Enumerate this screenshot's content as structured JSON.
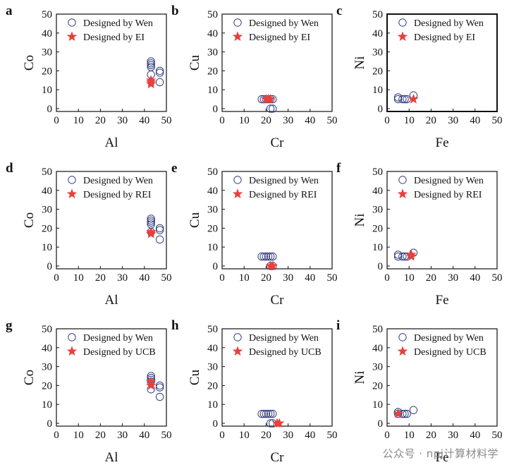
{
  "chart_data": [
    {
      "type": "scatter",
      "panel": "a",
      "xlabel": "Al",
      "ylabel": "Co",
      "xlim": [
        0,
        50
      ],
      "ylim": [
        0,
        50
      ],
      "ticks": [
        0,
        10,
        20,
        30,
        40,
        50
      ],
      "legend": "top-right",
      "series": [
        {
          "name": "Designed by Wen",
          "marker": "circle",
          "color": "#34407e",
          "points": [
            [
              43,
              25
            ],
            [
              43,
              24
            ],
            [
              43,
              23
            ],
            [
              43,
              22
            ],
            [
              43,
              18
            ],
            [
              47,
              20
            ],
            [
              47,
              19
            ],
            [
              47,
              14
            ]
          ]
        },
        {
          "name": "Designed by EI",
          "marker": "star",
          "color": "#e8403a",
          "points": [
            [
              43,
              15
            ],
            [
              43,
              14
            ],
            [
              43,
              13
            ]
          ]
        }
      ]
    },
    {
      "type": "scatter",
      "panel": "b",
      "xlabel": "Cr",
      "ylabel": "Cu",
      "xlim": [
        0,
        50
      ],
      "ylim": [
        0,
        50
      ],
      "ticks": [
        0,
        10,
        20,
        30,
        40,
        50
      ],
      "legend": "top-right",
      "series": [
        {
          "name": "Designed by Wen",
          "marker": "circle",
          "color": "#34407e",
          "points": [
            [
              18,
              5
            ],
            [
              19,
              5
            ],
            [
              20,
              5
            ],
            [
              21,
              5
            ],
            [
              22,
              5
            ],
            [
              23,
              5
            ],
            [
              22,
              0
            ],
            [
              23,
              0
            ]
          ]
        },
        {
          "name": "Designed by EI",
          "marker": "star",
          "color": "#e8403a",
          "points": [
            [
              20,
              5
            ],
            [
              21,
              5
            ],
            [
              22,
              5
            ]
          ]
        }
      ]
    },
    {
      "type": "scatter",
      "panel": "c",
      "xlabel": "Fe",
      "ylabel": "Ni",
      "xlim": [
        0,
        50
      ],
      "ylim": [
        0,
        50
      ],
      "ticks": [
        0,
        10,
        20,
        30,
        40,
        50
      ],
      "legend": "top-right",
      "series": [
        {
          "name": "Designed by Wen",
          "marker": "circle",
          "color": "#34407e",
          "points": [
            [
              5,
              6
            ],
            [
              5,
              5
            ],
            [
              7,
              5
            ],
            [
              8,
              5
            ],
            [
              9,
              5
            ],
            [
              12,
              7
            ]
          ]
        },
        {
          "name": "Designed by EI",
          "marker": "star",
          "color": "#e8403a",
          "points": [
            [
              12,
              5
            ]
          ]
        }
      ]
    },
    {
      "type": "scatter",
      "panel": "d",
      "xlabel": "Al",
      "ylabel": "Co",
      "xlim": [
        0,
        50
      ],
      "ylim": [
        0,
        50
      ],
      "ticks": [
        0,
        10,
        20,
        30,
        40,
        50
      ],
      "legend": "top-right",
      "series": [
        {
          "name": "Designed by Wen",
          "marker": "circle",
          "color": "#34407e",
          "points": [
            [
              43,
              25
            ],
            [
              43,
              24
            ],
            [
              43,
              23
            ],
            [
              43,
              22
            ],
            [
              43,
              18
            ],
            [
              47,
              20
            ],
            [
              47,
              19
            ],
            [
              47,
              14
            ]
          ]
        },
        {
          "name": "Designed by REI",
          "marker": "star",
          "color": "#e8403a",
          "points": [
            [
              43,
              18
            ],
            [
              43,
              17
            ]
          ]
        }
      ]
    },
    {
      "type": "scatter",
      "panel": "e",
      "xlabel": "Cr",
      "ylabel": "Cu",
      "xlim": [
        0,
        50
      ],
      "ylim": [
        0,
        50
      ],
      "ticks": [
        0,
        10,
        20,
        30,
        40,
        50
      ],
      "legend": "top-right",
      "series": [
        {
          "name": "Designed by Wen",
          "marker": "circle",
          "color": "#34407e",
          "points": [
            [
              18,
              5
            ],
            [
              19,
              5
            ],
            [
              20,
              5
            ],
            [
              21,
              5
            ],
            [
              22,
              5
            ],
            [
              23,
              5
            ],
            [
              22,
              0
            ],
            [
              23,
              0
            ]
          ]
        },
        {
          "name": "Designed by REI",
          "marker": "star",
          "color": "#e8403a",
          "points": [
            [
              22,
              0
            ],
            [
              23,
              0
            ]
          ]
        }
      ]
    },
    {
      "type": "scatter",
      "panel": "f",
      "xlabel": "Fe",
      "ylabel": "Ni",
      "xlim": [
        0,
        50
      ],
      "ylim": [
        0,
        50
      ],
      "ticks": [
        0,
        10,
        20,
        30,
        40,
        50
      ],
      "legend": "top-right",
      "series": [
        {
          "name": "Designed by Wen",
          "marker": "circle",
          "color": "#34407e",
          "points": [
            [
              5,
              6
            ],
            [
              5,
              5
            ],
            [
              7,
              5
            ],
            [
              8,
              5
            ],
            [
              9,
              5
            ],
            [
              12,
              7
            ]
          ]
        },
        {
          "name": "Designed by REI",
          "marker": "star",
          "color": "#e8403a",
          "points": [
            [
              11,
              6
            ],
            [
              11,
              5
            ]
          ]
        }
      ]
    },
    {
      "type": "scatter",
      "panel": "g",
      "xlabel": "Al",
      "ylabel": "Co",
      "xlim": [
        0,
        50
      ],
      "ylim": [
        0,
        50
      ],
      "ticks": [
        0,
        10,
        20,
        30,
        40,
        50
      ],
      "legend": "top-right",
      "series": [
        {
          "name": "Designed by Wen",
          "marker": "circle",
          "color": "#34407e",
          "points": [
            [
              43,
              25
            ],
            [
              43,
              24
            ],
            [
              43,
              23
            ],
            [
              43,
              22
            ],
            [
              43,
              18
            ],
            [
              47,
              20
            ],
            [
              47,
              19
            ],
            [
              47,
              14
            ]
          ]
        },
        {
          "name": "Designed by UCB",
          "marker": "star",
          "color": "#e8403a",
          "points": [
            [
              43,
              22
            ],
            [
              43,
              20
            ]
          ]
        }
      ]
    },
    {
      "type": "scatter",
      "panel": "h",
      "xlabel": "Cr",
      "ylabel": "Cu",
      "xlim": [
        0,
        50
      ],
      "ylim": [
        0,
        50
      ],
      "ticks": [
        0,
        10,
        20,
        30,
        40,
        50
      ],
      "legend": "top-right",
      "series": [
        {
          "name": "Designed by Wen",
          "marker": "circle",
          "color": "#34407e",
          "points": [
            [
              18,
              5
            ],
            [
              19,
              5
            ],
            [
              20,
              5
            ],
            [
              21,
              5
            ],
            [
              22,
              5
            ],
            [
              23,
              5
            ],
            [
              22,
              0
            ],
            [
              23,
              0
            ]
          ]
        },
        {
          "name": "Designed by UCB",
          "marker": "star",
          "color": "#e8403a",
          "points": [
            [
              25,
              0
            ],
            [
              26,
              0
            ]
          ]
        }
      ]
    },
    {
      "type": "scatter",
      "panel": "i",
      "xlabel": "Fe",
      "ylabel": "Ni",
      "xlim": [
        0,
        50
      ],
      "ylim": [
        0,
        50
      ],
      "ticks": [
        0,
        10,
        20,
        30,
        40,
        50
      ],
      "legend": "top-right",
      "series": [
        {
          "name": "Designed by Wen",
          "marker": "circle",
          "color": "#34407e",
          "points": [
            [
              5,
              6
            ],
            [
              5,
              5
            ],
            [
              7,
              5
            ],
            [
              8,
              5
            ],
            [
              9,
              5
            ],
            [
              12,
              7
            ]
          ]
        },
        {
          "name": "Designed by UCB",
          "marker": "star",
          "color": "#e8403a",
          "points": [
            [
              5,
              5
            ]
          ]
        }
      ]
    }
  ],
  "watermark": "公众号 · npj计算材料学"
}
